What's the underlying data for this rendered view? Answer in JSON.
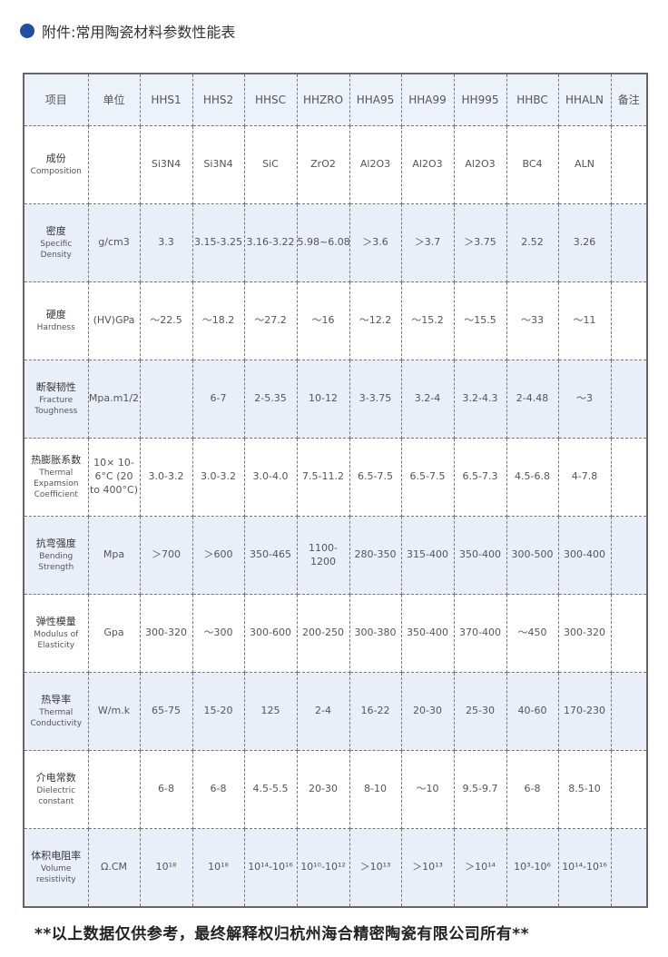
{
  "title": "附件:常用陶瓷材料参数性能表",
  "table": {
    "headers": [
      "项目",
      "单位",
      "HHS1",
      "HHS2",
      "HHSC",
      "HHZRO",
      "HHA95",
      "HHA99",
      "HH995",
      "HHBC",
      "HHALN",
      "备注"
    ],
    "rows": [
      {
        "zh": "成份",
        "en": "Composition",
        "unit": "",
        "values": [
          "Si3N4",
          "Si3N4",
          "SiC",
          "ZrO2",
          "Al2O3",
          "Al2O3",
          "Al2O3",
          "BC4",
          "ALN"
        ],
        "note": ""
      },
      {
        "zh": "密度",
        "en": "Specific Density",
        "unit": "g/cm3",
        "values": [
          "3.3",
          "3.15-3.25",
          "3.16-3.22",
          "5.98~6.08",
          "＞3.6",
          "＞3.7",
          "＞3.75",
          "2.52",
          "3.26"
        ],
        "note": ""
      },
      {
        "zh": "硬度",
        "en": "Hardness",
        "unit": "(HV)GPa",
        "values": [
          "～22.5",
          "～18.2",
          "～27.2",
          "～16",
          "～12.2",
          "～15.2",
          "～15.5",
          "～33",
          "～11"
        ],
        "note": ""
      },
      {
        "zh": "断裂韧性",
        "en": "Fracture Toughness",
        "unit": "Mpa.m1/2",
        "values": [
          "",
          "6-7",
          "2-5.35",
          "10-12",
          "3-3.75",
          "3.2-4",
          "3.2-4.3",
          "2-4.48",
          "～3"
        ],
        "note": ""
      },
      {
        "zh": "热膨胀系数",
        "en": "Thermal Expamsion Coefficient",
        "unit": "10× 10-6°C (20 to 400°C)",
        "values": [
          "3.0-3.2",
          "3.0-3.2",
          "3.0-4.0",
          "7.5-11.2",
          "6.5-7.5",
          "6.5-7.5",
          "6.5-7.3",
          "4.5-6.8",
          "4-7.8"
        ],
        "note": ""
      },
      {
        "zh": "抗弯强度",
        "en": "Bending Strength",
        "unit": "Mpa",
        "values": [
          "＞700",
          "＞600",
          "350-465",
          "1100-1200",
          "280-350",
          "315-400",
          "350-400",
          "300-500",
          "300-400"
        ],
        "note": ""
      },
      {
        "zh": "弹性模量",
        "en": "Modulus of Elasticity",
        "unit": "Gpa",
        "values": [
          "300-320",
          "～300",
          "300-600",
          "200-250",
          "300-380",
          "350-400",
          "370-400",
          "～450",
          "300-320"
        ],
        "note": ""
      },
      {
        "zh": "热导率",
        "en": "Thermal Conductivity",
        "unit": "W/m.k",
        "values": [
          "65-75",
          "15-20",
          "125",
          "2-4",
          "16-22",
          "20-30",
          "25-30",
          "40-60",
          "170-230"
        ],
        "note": ""
      },
      {
        "zh": "介电常数",
        "en": "Dielectric constant",
        "unit": "",
        "values": [
          "6-8",
          "6-8",
          "4.5-5.5",
          "20-30",
          "8-10",
          "～10",
          "9.5-9.7",
          "6-8",
          "8.5-10"
        ],
        "note": ""
      },
      {
        "zh": "体积电阻率",
        "en": "Volume resistivity",
        "unit": "Ω.CM",
        "values": [
          "10¹⁸",
          "10¹⁸",
          "10¹⁴-10¹⁶",
          "10¹⁰-10¹²",
          "＞10¹³",
          "＞10¹³",
          "＞10¹⁴",
          "10³-10⁶",
          "10¹⁴-10¹⁶"
        ],
        "note": ""
      }
    ]
  },
  "footer": "**以上数据仅供参考，最终解释权归杭州海合精密陶瓷有限公司所有**",
  "colors": {
    "accent": "#1f4fa0",
    "header_bg": "#edf1f9",
    "alt_row_bg": "#e9eef8"
  }
}
